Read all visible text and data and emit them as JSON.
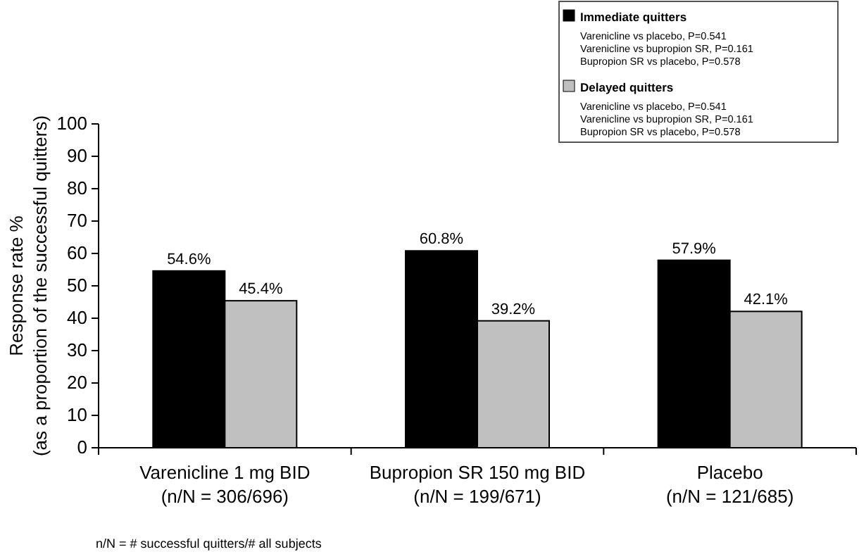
{
  "chart_data": {
    "type": "bar",
    "ylabel": "Response rate %\n(as a proportion of the successful quitters)",
    "categories": [
      "Varenicline 1 mg BID\n(n/N = 306/696)",
      "Bupropion SR 150 mg BID\n(n/N = 199/671)",
      "Placebo\n(n/N = 121/685)"
    ],
    "series": [
      {
        "name": "Immediate quitters",
        "color": "#000000",
        "values": [
          54.6,
          60.8,
          57.9
        ],
        "value_labels": [
          "54.6%",
          "60.8%",
          "57.9%"
        ]
      },
      {
        "name": "Delayed quitters",
        "color": "#c0c0c0",
        "values": [
          45.4,
          39.2,
          42.1
        ],
        "value_labels": [
          "45.4%",
          "39.2%",
          "42.1%"
        ]
      }
    ],
    "ylim": [
      0,
      100
    ],
    "yticks": [
      0,
      10,
      20,
      30,
      40,
      50,
      60,
      70,
      80,
      90,
      100
    ],
    "grid": false,
    "legend": "top right",
    "annotations": [
      "Varenicline vs placebo, P=0.541",
      "Varenicline vs bupropion SR, P=0.161",
      "Bupropion SR vs placebo, P=0.578",
      "Varenicline vs placebo, P=0.541",
      "Varenicline vs bupropion SR, P=0.161",
      "Bupropion SR vs placebo, P=0.578",
      "n/N = # successful quitters/# all subjects"
    ]
  }
}
